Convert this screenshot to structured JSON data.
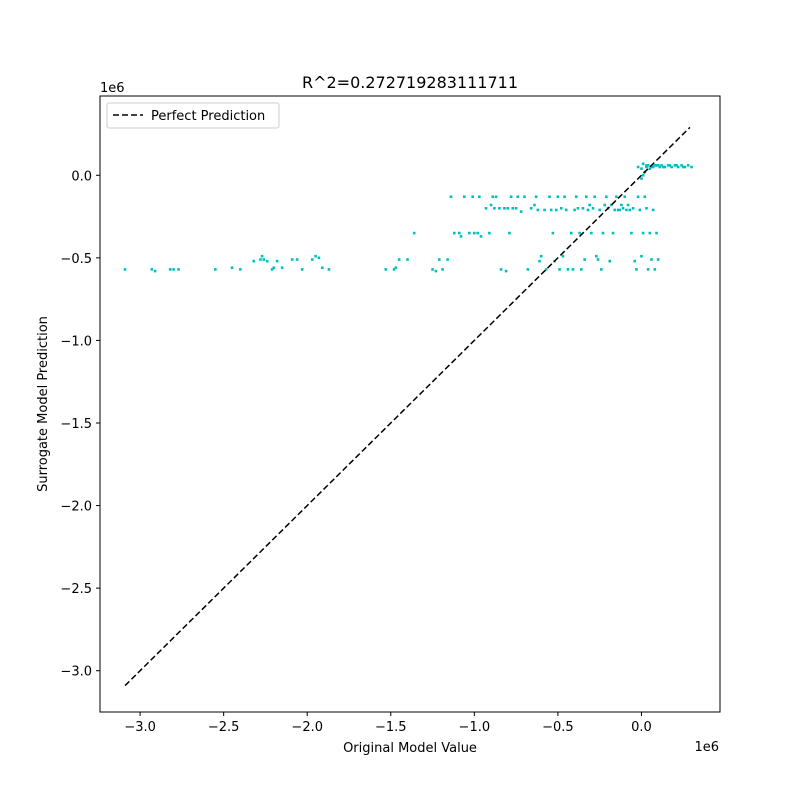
{
  "chart_data": {
    "type": "scatter",
    "title": "R^2=0.272719283111711",
    "xlabel": "Original Model Value",
    "ylabel": "Surrogate Model Prediction",
    "x_offset_text": "1e6",
    "y_offset_text": "1e6",
    "xlim": [
      -3.24,
      0.47
    ],
    "ylim": [
      -3.25,
      0.48
    ],
    "xticks": [
      -3.0,
      -2.5,
      -2.0,
      -1.5,
      -1.0,
      -0.5,
      0.0
    ],
    "xtick_labels": [
      "−3.0",
      "−2.5",
      "−2.0",
      "−1.5",
      "−1.0",
      "−0.5",
      "0.0"
    ],
    "yticks": [
      0.0,
      -0.5,
      -1.0,
      -1.5,
      -2.0,
      -2.5,
      -3.0
    ],
    "ytick_labels": [
      "0.0",
      "−0.5",
      "−1.0",
      "−1.5",
      "−2.0",
      "−2.5",
      "−3.0"
    ],
    "grid": false,
    "legend_position": "top-left",
    "reference_line": {
      "name": "Perfect Prediction",
      "color": "#000000",
      "style": "dashed",
      "x": [
        -3.09,
        0.29
      ],
      "y": [
        -3.09,
        0.29
      ]
    },
    "series": [
      {
        "color": "#00bfbf",
        "points": [
          [
            -3.09,
            -0.57
          ],
          [
            -2.93,
            -0.57
          ],
          [
            -2.91,
            -0.58
          ],
          [
            -2.82,
            -0.57
          ],
          [
            -2.8,
            -0.57
          ],
          [
            -2.77,
            -0.57
          ],
          [
            -2.55,
            -0.57
          ],
          [
            -2.45,
            -0.56
          ],
          [
            -2.4,
            -0.57
          ],
          [
            -2.32,
            -0.52
          ],
          [
            -2.28,
            -0.51
          ],
          [
            -2.27,
            -0.49
          ],
          [
            -2.26,
            -0.51
          ],
          [
            -2.24,
            -0.52
          ],
          [
            -2.21,
            -0.57
          ],
          [
            -2.2,
            -0.56
          ],
          [
            -2.18,
            -0.52
          ],
          [
            -2.15,
            -0.56
          ],
          [
            -2.09,
            -0.51
          ],
          [
            -2.06,
            -0.51
          ],
          [
            -2.03,
            -0.57
          ],
          [
            -1.97,
            -0.51
          ],
          [
            -1.95,
            -0.49
          ],
          [
            -1.93,
            -0.5
          ],
          [
            -1.91,
            -0.56
          ],
          [
            -1.87,
            -0.57
          ],
          [
            -1.53,
            -0.57
          ],
          [
            -1.48,
            -0.57
          ],
          [
            -1.47,
            -0.56
          ],
          [
            -1.45,
            -0.51
          ],
          [
            -1.4,
            -0.51
          ],
          [
            -1.36,
            -0.35
          ],
          [
            -1.25,
            -0.57
          ],
          [
            -1.23,
            -0.58
          ],
          [
            -1.21,
            -0.51
          ],
          [
            -1.19,
            -0.57
          ],
          [
            -1.16,
            -0.51
          ],
          [
            -1.14,
            -0.13
          ],
          [
            -1.12,
            -0.35
          ],
          [
            -1.09,
            -0.35
          ],
          [
            -1.08,
            -0.37
          ],
          [
            -1.06,
            -0.13
          ],
          [
            -1.03,
            -0.35
          ],
          [
            -1.01,
            -0.13
          ],
          [
            -1.0,
            -0.35
          ],
          [
            -0.98,
            -0.35
          ],
          [
            -0.97,
            -0.13
          ],
          [
            -0.96,
            -0.37
          ],
          [
            -0.93,
            -0.2
          ],
          [
            -0.91,
            -0.35
          ],
          [
            -0.9,
            -0.18
          ],
          [
            -0.89,
            -0.13
          ],
          [
            -0.88,
            -0.2
          ],
          [
            -0.87,
            -0.13
          ],
          [
            -0.85,
            -0.2
          ],
          [
            -0.84,
            -0.57
          ],
          [
            -0.82,
            -0.2
          ],
          [
            -0.81,
            -0.58
          ],
          [
            -0.8,
            -0.2
          ],
          [
            -0.79,
            -0.35
          ],
          [
            -0.78,
            -0.13
          ],
          [
            -0.77,
            -0.2
          ],
          [
            -0.75,
            -0.2
          ],
          [
            -0.74,
            -0.13
          ],
          [
            -0.72,
            -0.22
          ],
          [
            -0.7,
            -0.13
          ],
          [
            -0.68,
            -0.57
          ],
          [
            -0.66,
            -0.2
          ],
          [
            -0.64,
            -0.18
          ],
          [
            -0.63,
            -0.13
          ],
          [
            -0.62,
            -0.21
          ],
          [
            -0.61,
            -0.52
          ],
          [
            -0.6,
            -0.49
          ],
          [
            -0.58,
            -0.21
          ],
          [
            -0.57,
            -0.57
          ],
          [
            -0.55,
            -0.13
          ],
          [
            -0.54,
            -0.21
          ],
          [
            -0.53,
            -0.35
          ],
          [
            -0.52,
            -0.52
          ],
          [
            -0.51,
            -0.21
          ],
          [
            -0.5,
            -0.13
          ],
          [
            -0.49,
            -0.57
          ],
          [
            -0.48,
            -0.2
          ],
          [
            -0.47,
            -0.49
          ],
          [
            -0.46,
            -0.13
          ],
          [
            -0.45,
            -0.21
          ],
          [
            -0.44,
            -0.57
          ],
          [
            -0.42,
            -0.35
          ],
          [
            -0.41,
            -0.57
          ],
          [
            -0.4,
            -0.21
          ],
          [
            -0.39,
            -0.13
          ],
          [
            -0.38,
            -0.2
          ],
          [
            -0.37,
            -0.35
          ],
          [
            -0.36,
            -0.57
          ],
          [
            -0.35,
            -0.2
          ],
          [
            -0.34,
            -0.51
          ],
          [
            -0.33,
            -0.13
          ],
          [
            -0.32,
            -0.21
          ],
          [
            -0.31,
            -0.18
          ],
          [
            -0.3,
            -0.35
          ],
          [
            -0.29,
            -0.2
          ],
          [
            -0.28,
            -0.13
          ],
          [
            -0.27,
            -0.49
          ],
          [
            -0.26,
            -0.51
          ],
          [
            -0.25,
            -0.21
          ],
          [
            -0.24,
            -0.57
          ],
          [
            -0.23,
            -0.35
          ],
          [
            -0.22,
            -0.18
          ],
          [
            -0.21,
            -0.13
          ],
          [
            -0.2,
            -0.2
          ],
          [
            -0.19,
            -0.52
          ],
          [
            -0.18,
            -0.18
          ],
          [
            -0.17,
            -0.35
          ],
          [
            -0.16,
            -0.21
          ],
          [
            -0.15,
            -0.13
          ],
          [
            -0.14,
            -0.21
          ],
          [
            -0.13,
            -0.21
          ],
          [
            -0.12,
            -0.18
          ],
          [
            -0.11,
            -0.2
          ],
          [
            -0.1,
            -0.13
          ],
          [
            -0.09,
            -0.21
          ],
          [
            -0.08,
            -0.18
          ],
          [
            -0.07,
            -0.21
          ],
          [
            -0.06,
            -0.35
          ],
          [
            -0.05,
            -0.2
          ],
          [
            -0.04,
            -0.52
          ],
          [
            -0.03,
            -0.57
          ],
          [
            -0.02,
            -0.13
          ],
          [
            -0.01,
            -0.21
          ],
          [
            0.0,
            -0.49
          ],
          [
            0.01,
            -0.35
          ],
          [
            0.02,
            -0.13
          ],
          [
            0.03,
            -0.2
          ],
          [
            0.04,
            -0.57
          ],
          [
            0.05,
            -0.35
          ],
          [
            0.06,
            -0.51
          ],
          [
            0.07,
            -0.21
          ],
          [
            0.08,
            -0.57
          ],
          [
            0.09,
            -0.35
          ],
          [
            0.1,
            -0.51
          ],
          [
            0.0,
            -0.02
          ],
          [
            0.01,
            0.0
          ],
          [
            0.02,
            0.02
          ],
          [
            0.0,
            0.04
          ],
          [
            0.03,
            0.06
          ],
          [
            0.05,
            0.04
          ],
          [
            -0.02,
            0.05
          ],
          [
            0.01,
            0.07
          ],
          [
            0.04,
            0.06
          ],
          [
            0.07,
            0.05
          ],
          [
            0.09,
            0.06
          ],
          [
            0.11,
            0.05
          ],
          [
            0.12,
            0.06
          ],
          [
            0.14,
            0.05
          ],
          [
            0.16,
            0.06
          ],
          [
            0.18,
            0.05
          ],
          [
            0.2,
            0.06
          ],
          [
            0.22,
            0.05
          ],
          [
            0.24,
            0.06
          ],
          [
            0.26,
            0.05
          ],
          [
            0.28,
            0.06
          ],
          [
            0.3,
            0.05
          ],
          [
            0.06,
            0.05
          ],
          [
            0.08,
            0.06
          ],
          [
            0.13,
            0.05
          ],
          [
            0.17,
            0.06
          ],
          [
            0.21,
            0.06
          ],
          [
            0.25,
            0.05
          ],
          [
            0.03,
            0.05
          ],
          [
            0.1,
            0.06
          ]
        ]
      }
    ]
  }
}
